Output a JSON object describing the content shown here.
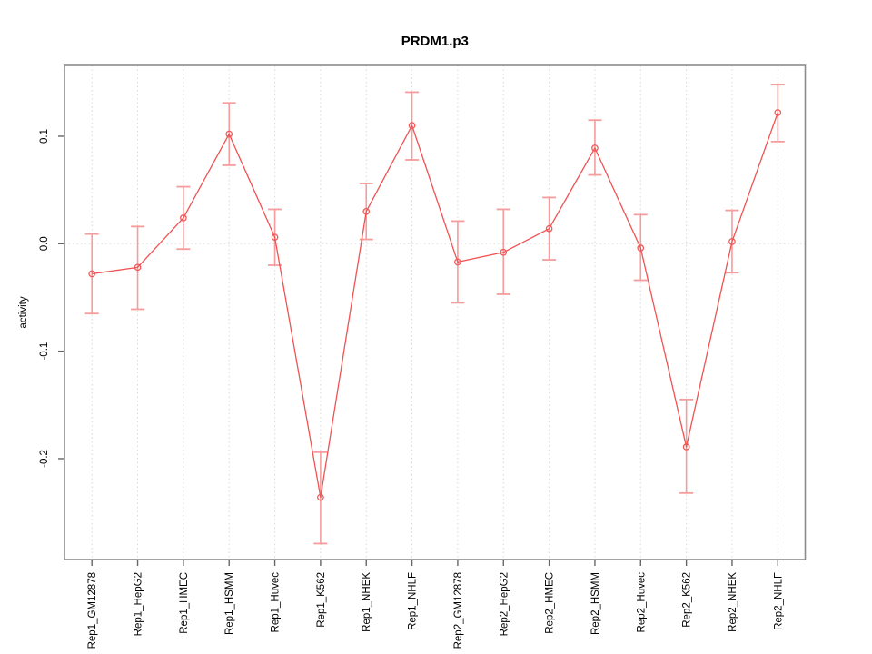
{
  "chart_data": {
    "type": "line",
    "title": "PRDM1.p3",
    "xlabel": "",
    "ylabel": "activity",
    "legend": "none",
    "categories": [
      "Rep1_GM12878",
      "Rep1_HepG2",
      "Rep1_HMEC",
      "Rep1_HSMM",
      "Rep1_Huvec",
      "Rep1_K562",
      "Rep1_NHEK",
      "Rep1_NHLF",
      "Rep2_GM12878",
      "Rep2_HepG2",
      "Rep2_HMEC",
      "Rep2_HSMM",
      "Rep2_Huvec",
      "Rep2_K562",
      "Rep2_NHEK",
      "Rep2_NHLF"
    ],
    "series": [
      {
        "name": "activity",
        "values": [
          -0.028,
          -0.022,
          0.024,
          0.102,
          0.006,
          -0.236,
          0.03,
          0.11,
          -0.017,
          -0.008,
          0.014,
          0.089,
          -0.004,
          -0.189,
          0.002,
          0.122
        ],
        "error_upper": [
          0.009,
          0.016,
          0.053,
          0.131,
          0.032,
          -0.194,
          0.056,
          0.141,
          0.021,
          0.032,
          0.043,
          0.115,
          0.027,
          -0.145,
          0.031,
          0.148
        ],
        "error_lower": [
          -0.065,
          -0.061,
          -0.005,
          0.073,
          -0.02,
          -0.279,
          0.004,
          0.078,
          -0.055,
          -0.047,
          -0.015,
          0.064,
          -0.034,
          -0.232,
          -0.027,
          0.095
        ]
      }
    ],
    "yticks": [
      0.1,
      0.0,
      -0.1,
      -0.2
    ],
    "ytick_labels": [
      "0.1",
      "0.0",
      "-0.1",
      "-0.2"
    ],
    "ylim": [
      -0.296,
      0.165
    ],
    "grid": {
      "vertical": "dotted line at every category",
      "horizontal": "dotted line at zero only"
    },
    "marker": "open-circle",
    "error_bars": true
  },
  "colors": {
    "line": "#f05252",
    "point": "#ee5a5a",
    "error_bar": "#f59c9c",
    "grid": "#d9d9d9",
    "zero_line": "#d9d9d9",
    "frame": "#8c8c8c",
    "tick": "#666666",
    "text": "#000000",
    "background": "#ffffff"
  }
}
